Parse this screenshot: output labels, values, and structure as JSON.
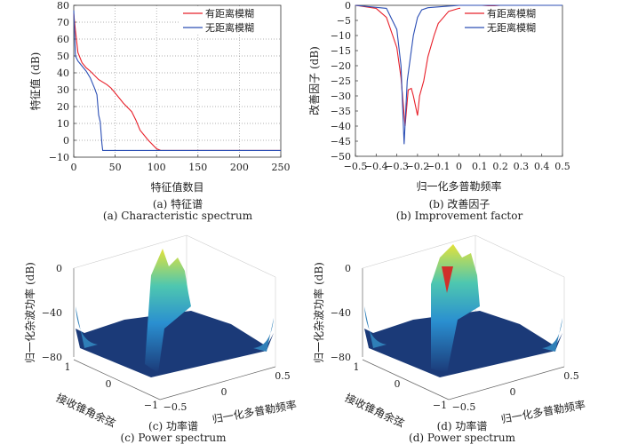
{
  "chart_data": [
    {
      "type": "line",
      "caption_cn": "(a) 特征谱",
      "caption_en": "(a) Characteristic spectrum",
      "xlabel": "特征值数目",
      "ylabel": "特征值 (dB)",
      "xlim": [
        0,
        250
      ],
      "ylim": [
        -10,
        80
      ],
      "xticks": [
        "0",
        "50",
        "100",
        "150",
        "200",
        "250"
      ],
      "yticks": [
        "−10",
        "0",
        "10",
        "20",
        "30",
        "40",
        "50",
        "60",
        "70",
        "80"
      ],
      "grid": true,
      "legend": "top-right",
      "series": [
        {
          "name": "有距离模糊",
          "color": "#e8202a",
          "x": [
            0,
            2,
            5,
            10,
            15,
            20,
            30,
            40,
            45,
            55,
            60,
            70,
            75,
            80,
            90,
            100,
            105,
            250
          ],
          "y": [
            75,
            65,
            52,
            46,
            43,
            41,
            36,
            33,
            31,
            25,
            22,
            17,
            12,
            6,
            0,
            -5,
            -6,
            -6
          ]
        },
        {
          "name": "无距离模糊",
          "color": "#2c4fb5",
          "x": [
            0,
            2,
            5,
            10,
            15,
            20,
            25,
            28,
            30,
            32,
            34,
            35,
            250
          ],
          "y": [
            77,
            50,
            47,
            44,
            41,
            37,
            31,
            27,
            15,
            11,
            -2,
            -6,
            -6
          ]
        }
      ]
    },
    {
      "type": "line",
      "caption_cn": "(b) 改善因子",
      "caption_en": "(b) Improvement factor",
      "xlabel": "归一化多普勒频率",
      "ylabel": "改善因子 (dB)",
      "xlim": [
        -0.5,
        0.5
      ],
      "ylim": [
        -50,
        0
      ],
      "xticks": [
        "−0.5",
        "−0.4",
        "−0.3",
        "−0.2",
        "−0.1",
        "0",
        "0.1",
        "0.2",
        "0.3",
        "0.4",
        "0.5"
      ],
      "yticks": [
        "−50",
        "−45",
        "−40",
        "−35",
        "−30",
        "−25",
        "−20",
        "−15",
        "−10",
        "−5",
        "0"
      ],
      "grid": false,
      "legend": "top-right",
      "series": [
        {
          "name": "有距离模糊",
          "color": "#e8202a",
          "x": [
            -0.5,
            -0.4,
            -0.35,
            -0.3,
            -0.28,
            -0.26,
            -0.245,
            -0.23,
            -0.22,
            -0.2,
            -0.19,
            -0.17,
            -0.15,
            -0.12,
            -0.1,
            -0.05,
            0,
            0.2,
            0.5
          ],
          "y": [
            0,
            -1,
            -4,
            -14,
            -24,
            -40,
            -28,
            -27.5,
            -30,
            -36.5,
            -30,
            -25,
            -17,
            -10,
            -6,
            -2,
            -1,
            0,
            0
          ]
        },
        {
          "name": "无距离模糊",
          "color": "#2c4fb5",
          "x": [
            -0.5,
            -0.35,
            -0.3,
            -0.28,
            -0.265,
            -0.25,
            -0.22,
            -0.2,
            -0.18,
            -0.15,
            0,
            0.5
          ],
          "y": [
            0,
            -1,
            -8,
            -20,
            -46,
            -25,
            -10,
            -4,
            -1.5,
            -0.8,
            0,
            0
          ]
        }
      ]
    },
    {
      "type": "surface",
      "caption_cn": "(c) 功率谱",
      "caption_en": "(c) Power spectrum",
      "zlabel": "归一化杂波功率 (dB)",
      "xlabel": "归一化多普勒频率",
      "ylabel": "接收锥角余弦",
      "zticks": [
        "0",
        "−40",
        "−80"
      ],
      "xticks": [
        "−0.5",
        "0",
        "0.5"
      ],
      "yticks": [
        "1",
        "0",
        "−1"
      ]
    },
    {
      "type": "surface",
      "caption_cn": "(d) 功率谱",
      "caption_en": "(d) Power spectrum",
      "zlabel": "归一化杂波功率 (dB)",
      "xlabel": "归一化多普勒频率",
      "ylabel": "接收锥角余弦",
      "zticks": [
        "0",
        "−40",
        "−80"
      ],
      "xticks": [
        "−0.5",
        "0",
        "0.5"
      ],
      "yticks": [
        "1",
        "0",
        "−1"
      ]
    }
  ]
}
